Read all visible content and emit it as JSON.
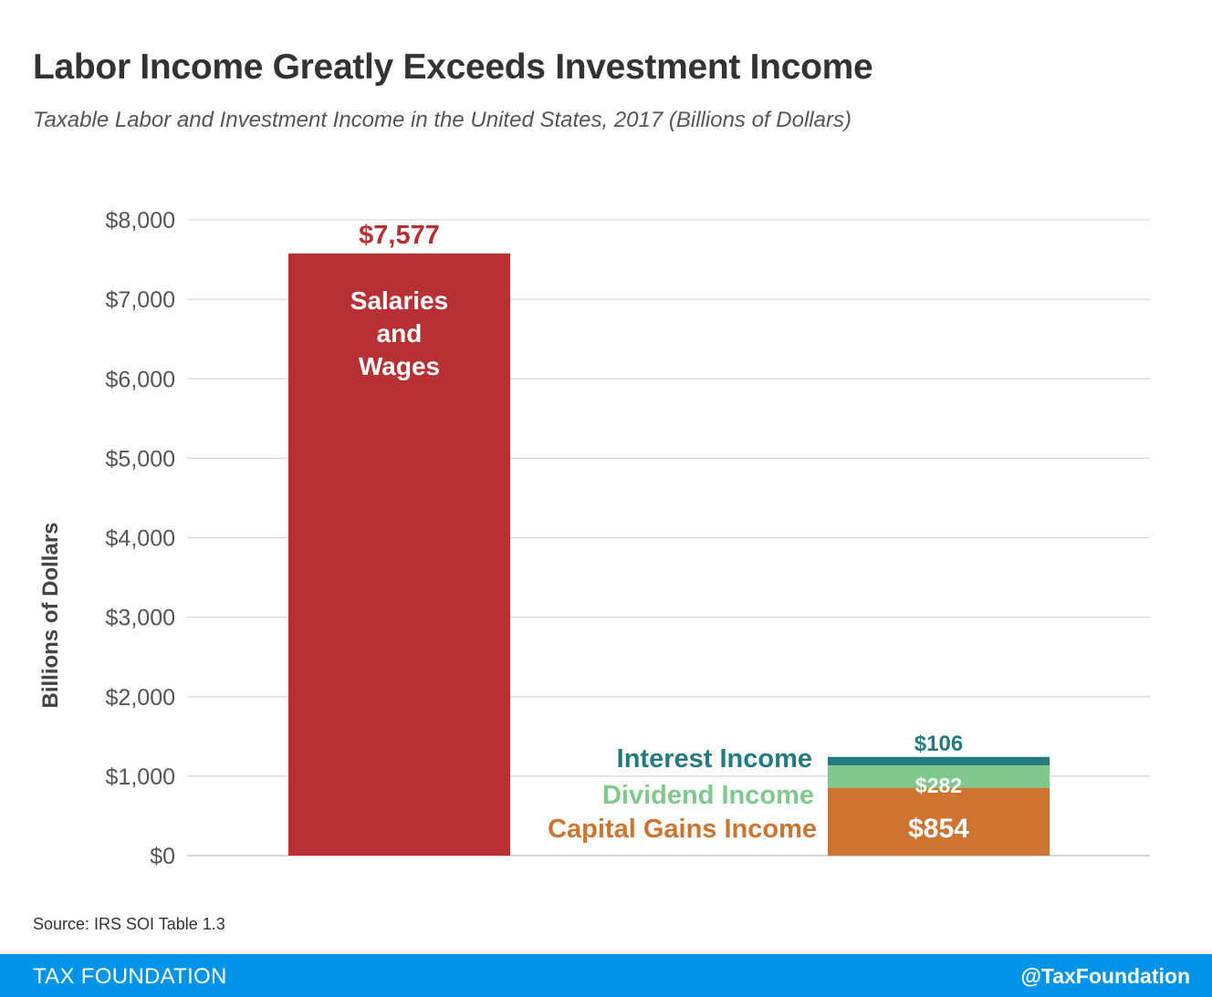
{
  "header": {
    "title": "Labor Income Greatly Exceeds Investment Income",
    "subtitle": "Taxable Labor and Investment Income in the United States, 2017 (Billions of Dollars)"
  },
  "chart_data": {
    "type": "bar",
    "stacked": true,
    "ylabel": "Billions of Dollars",
    "xlabel": "",
    "ylim": [
      0,
      8000
    ],
    "yticks": [
      0,
      1000,
      2000,
      3000,
      4000,
      5000,
      6000,
      7000,
      8000
    ],
    "ytick_labels": [
      "$0",
      "$1,000",
      "$2,000",
      "$3,000",
      "$4,000",
      "$5,000",
      "$6,000",
      "$7,000",
      "$8,000"
    ],
    "grid": true,
    "bars": [
      {
        "segments": [
          {
            "name": "Salaries and Wages",
            "name_lines": [
              "Salaries",
              "and",
              "Wages"
            ],
            "value": 7577,
            "label": "$7,577",
            "color": "#b83034"
          }
        ]
      },
      {
        "segments": [
          {
            "name": "Capital Gains Income",
            "value": 854,
            "label": "$854",
            "color": "#cd7431"
          },
          {
            "name": "Dividend Income",
            "value": 282,
            "label": "$282",
            "color": "#80c98c"
          },
          {
            "name": "Interest Income",
            "value": 106,
            "label": "$106",
            "color": "#247b7f"
          }
        ]
      }
    ]
  },
  "colors": {
    "title": "#333333",
    "axis_text": "#555555",
    "grid": "#d9d9d9",
    "footer_bg": "#0094e8"
  },
  "source": "Source: IRS SOI Table 1.3",
  "footer": {
    "left": "TAX FOUNDATION",
    "right": "@TaxFoundation"
  }
}
